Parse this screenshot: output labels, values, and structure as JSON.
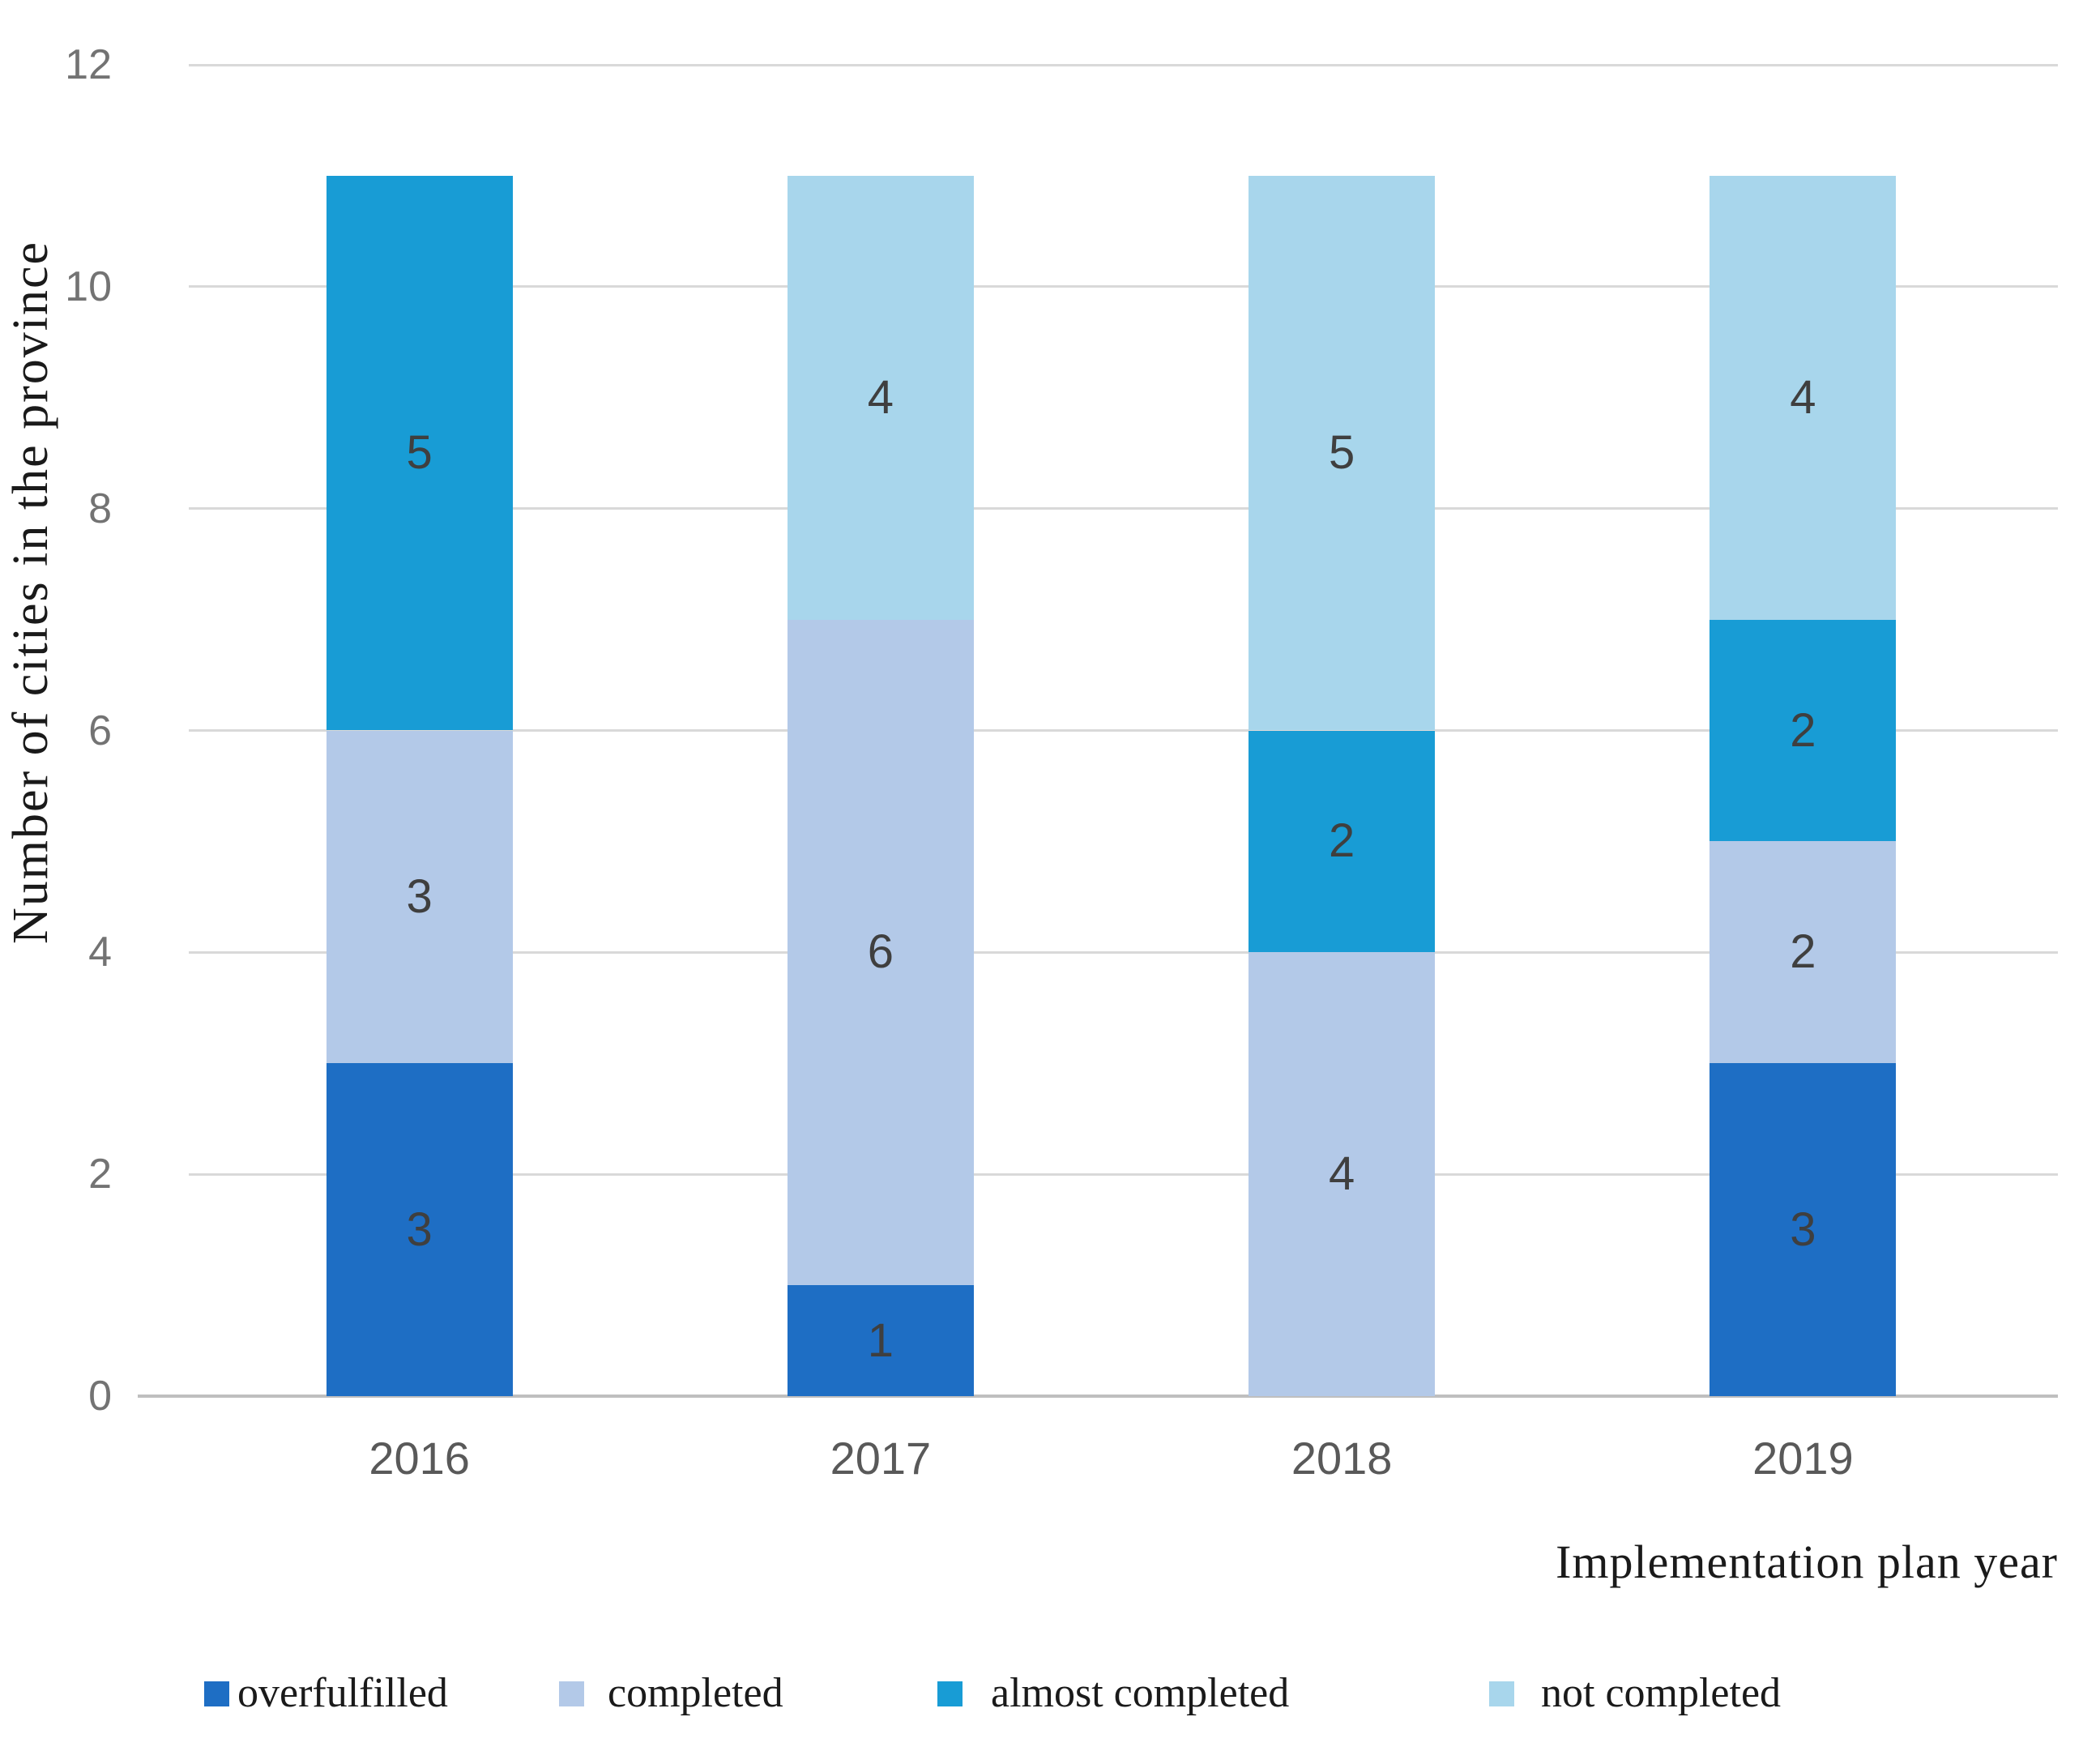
{
  "chart_data": {
    "type": "bar",
    "subtype": "stacked-vertical",
    "title": "",
    "xlabel": "Implementation plan year",
    "ylabel": "Number of cities in the province",
    "categories": [
      "2016",
      "2017",
      "2018",
      "2019"
    ],
    "series": [
      {
        "name": "overfulfilled",
        "color": "#1E6EC4",
        "values": [
          3,
          1,
          0,
          3
        ]
      },
      {
        "name": "completed",
        "color": "#B3C9E8",
        "values": [
          3,
          6,
          4,
          2
        ]
      },
      {
        "name": "almost completed",
        "color": "#189CD5",
        "values": [
          5,
          0,
          2,
          2
        ]
      },
      {
        "name": "not completed",
        "color": "#A8D6EC",
        "values": [
          0,
          4,
          5,
          4
        ]
      }
    ],
    "totals_per_category": [
      11,
      11,
      11,
      11
    ],
    "ylim": [
      0,
      12
    ],
    "yticks": [
      0,
      2,
      4,
      6,
      8,
      10,
      12
    ],
    "grid": "horizontal",
    "legend_position": "bottom",
    "colors": {
      "gridline": "#D9D9D9",
      "axis_line": "#BFBFBF",
      "tick_label": "#737373",
      "category_label": "#595959",
      "data_label": "#3F3F3F",
      "axis_title": "#1A1A1A",
      "legend_text": "#1A1A1A",
      "background": "#FFFFFF"
    }
  }
}
